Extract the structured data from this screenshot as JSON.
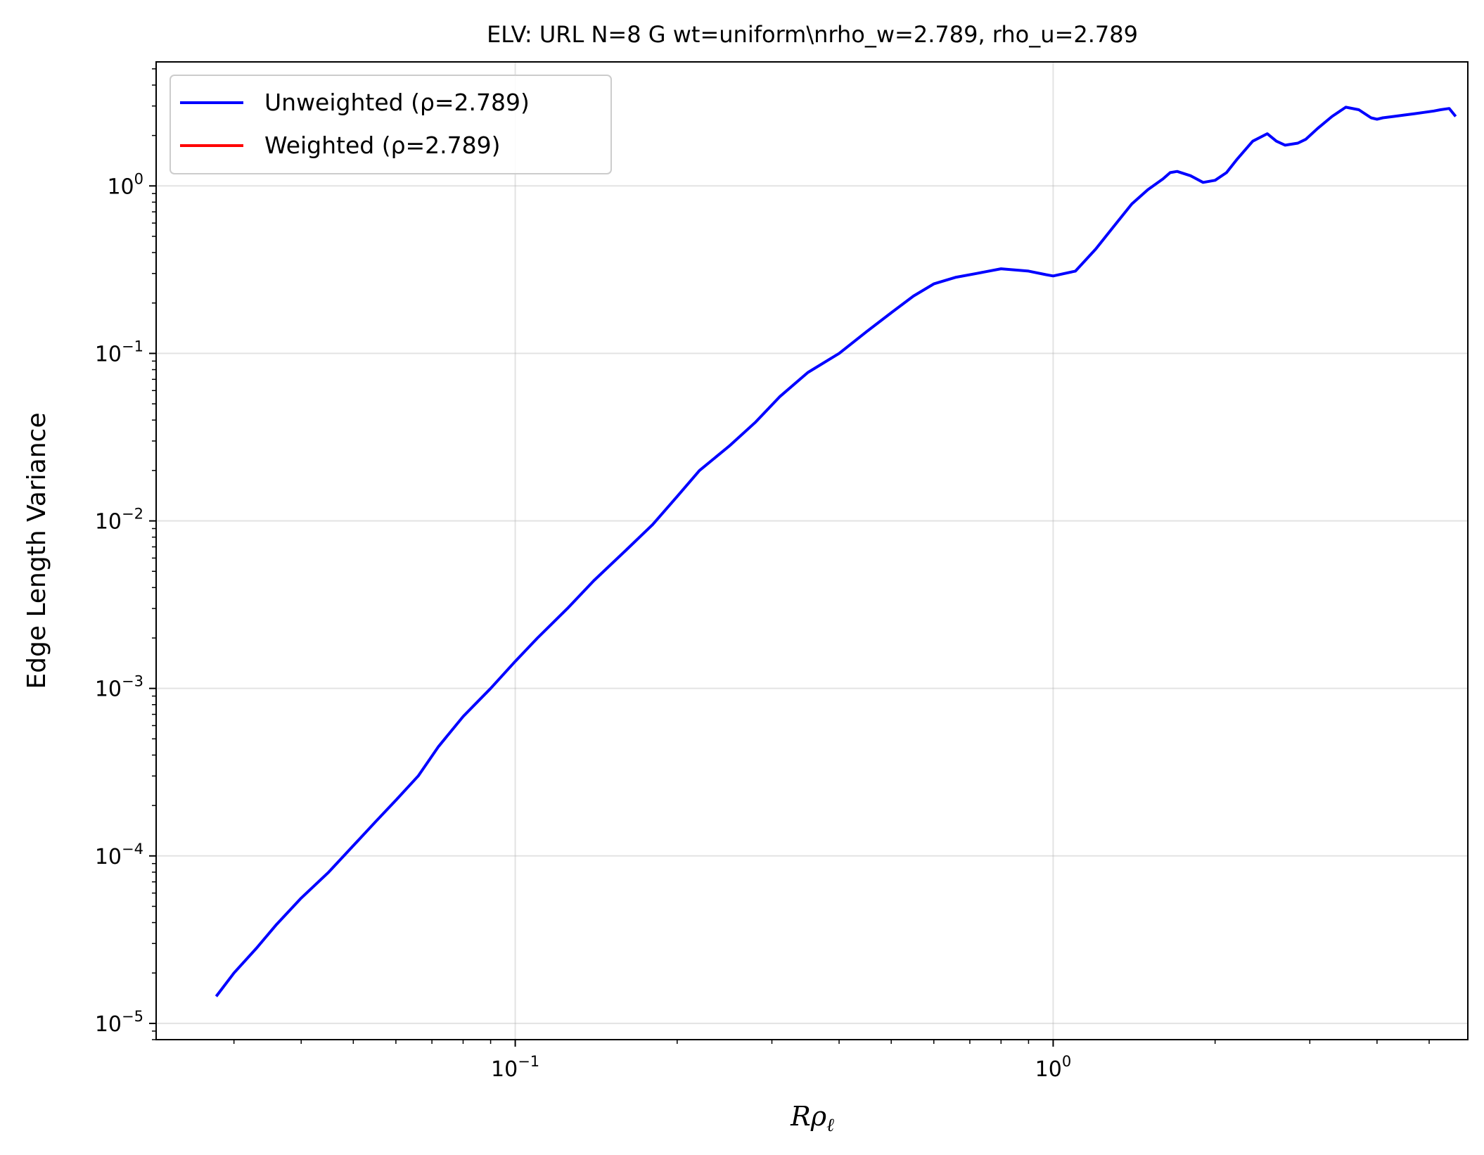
{
  "chart_data": {
    "type": "line",
    "title": "ELV: URL N=8 G wt=uniform\\nrho_w=2.789, rho_u=2.789",
    "xlabel": {
      "base": "R",
      "symbol": "ρ",
      "subscript": "ℓ"
    },
    "ylabel": "Edge Length Variance",
    "xscale": "log",
    "yscale": "log",
    "xlim": [
      0.0215,
      5.9
    ],
    "ylim": [
      8e-06,
      5.5
    ],
    "grid": true,
    "legend_position": "top-left",
    "xticks": [
      {
        "value": 0.1,
        "base": "10",
        "exp": "−1"
      },
      {
        "value": 1,
        "base": "10",
        "exp": "0"
      }
    ],
    "yticks": [
      {
        "value": 1e-05,
        "base": "10",
        "exp": "−5"
      },
      {
        "value": 0.0001,
        "base": "10",
        "exp": "−4"
      },
      {
        "value": 0.001,
        "base": "10",
        "exp": "−3"
      },
      {
        "value": 0.01,
        "base": "10",
        "exp": "−2"
      },
      {
        "value": 0.1,
        "base": "10",
        "exp": "−1"
      },
      {
        "value": 1,
        "base": "10",
        "exp": "0"
      }
    ],
    "series": [
      {
        "name": "Unweighted (ρ=2.789)",
        "color": "#0000ff",
        "x": [
          0.0278,
          0.03,
          0.033,
          0.036,
          0.04,
          0.045,
          0.05,
          0.055,
          0.06,
          0.066,
          0.072,
          0.08,
          0.09,
          0.1,
          0.11,
          0.125,
          0.14,
          0.16,
          0.18,
          0.2,
          0.22,
          0.25,
          0.28,
          0.31,
          0.35,
          0.4,
          0.45,
          0.5,
          0.55,
          0.6,
          0.66,
          0.72,
          0.8,
          0.9,
          0.97,
          1.0,
          1.1,
          1.2,
          1.3,
          1.4,
          1.5,
          1.6,
          1.65,
          1.7,
          1.8,
          1.9,
          2.0,
          2.1,
          2.2,
          2.35,
          2.5,
          2.6,
          2.7,
          2.85,
          2.9,
          2.95,
          3.1,
          3.3,
          3.5,
          3.7,
          3.9,
          4.0,
          4.1,
          4.3,
          4.5,
          4.7,
          4.9,
          5.1,
          5.25,
          5.45,
          5.6
        ],
        "y": [
          1.45e-05,
          2e-05,
          2.8e-05,
          3.9e-05,
          5.6e-05,
          8e-05,
          0.000115,
          0.00016,
          0.000215,
          0.0003,
          0.00045,
          0.00068,
          0.001,
          0.00145,
          0.002,
          0.003,
          0.0044,
          0.0066,
          0.0095,
          0.014,
          0.02,
          0.028,
          0.039,
          0.055,
          0.077,
          0.1,
          0.135,
          0.175,
          0.22,
          0.26,
          0.285,
          0.3,
          0.32,
          0.31,
          0.295,
          0.29,
          0.31,
          0.42,
          0.58,
          0.78,
          0.95,
          1.1,
          1.2,
          1.22,
          1.15,
          1.05,
          1.08,
          1.2,
          1.45,
          1.85,
          2.05,
          1.85,
          1.75,
          1.8,
          1.85,
          1.9,
          2.2,
          2.6,
          2.95,
          2.85,
          2.55,
          2.5,
          2.55,
          2.6,
          2.65,
          2.7,
          2.75,
          2.8,
          2.85,
          2.9,
          2.6
        ]
      },
      {
        "name": "Weighted (ρ=2.789)",
        "color": "#ff0000",
        "x": [],
        "y": []
      }
    ]
  }
}
